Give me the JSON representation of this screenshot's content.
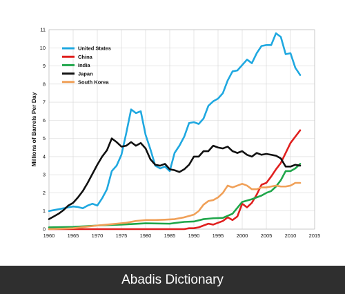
{
  "chart_data": {
    "type": "line",
    "ylabel": "Millions of Barrels Per Day",
    "xlabel": "",
    "xlim": [
      1960,
      2015
    ],
    "ylim": [
      0,
      11
    ],
    "xticks": [
      "1960",
      "1965",
      "1970",
      "1975",
      "1980",
      "1985",
      "1990",
      "1995",
      "2000",
      "2005",
      "2010",
      "2015"
    ],
    "yticks": [
      "0",
      "1",
      "2",
      "3",
      "4",
      "5",
      "6",
      "7",
      "8",
      "9",
      "10",
      "11"
    ],
    "grid": true,
    "legend_position": "top-left",
    "series": [
      {
        "name": "United States",
        "color": "#1fa8e0",
        "x": [
          1960,
          1961,
          1962,
          1963,
          1964,
          1965,
          1966,
          1967,
          1968,
          1969,
          1970,
          1971,
          1972,
          1973,
          1974,
          1975,
          1976,
          1977,
          1978,
          1979,
          1980,
          1981,
          1982,
          1983,
          1984,
          1985,
          1986,
          1987,
          1988,
          1989,
          1990,
          1991,
          1992,
          1993,
          1994,
          1995,
          1996,
          1997,
          1998,
          1999,
          2000,
          2001,
          2002,
          2003,
          2004,
          2005,
          2006,
          2007,
          2008,
          2009,
          2010,
          2011,
          2012
        ],
        "values": [
          1.0,
          1.05,
          1.1,
          1.15,
          1.2,
          1.25,
          1.22,
          1.15,
          1.3,
          1.4,
          1.3,
          1.7,
          2.2,
          3.2,
          3.5,
          4.1,
          5.3,
          6.6,
          6.4,
          6.5,
          5.2,
          4.4,
          3.5,
          3.35,
          3.45,
          3.2,
          4.2,
          4.6,
          5.1,
          5.85,
          5.9,
          5.8,
          6.1,
          6.8,
          7.05,
          7.2,
          7.5,
          8.2,
          8.7,
          8.75,
          9.05,
          9.35,
          9.15,
          9.7,
          10.1,
          10.15,
          10.15,
          10.8,
          10.6,
          9.65,
          9.7,
          8.9,
          8.5
        ]
      },
      {
        "name": "China",
        "color": "#e0201f",
        "x": [
          1960,
          1970,
          1980,
          1988,
          1989,
          1990,
          1991,
          1992,
          1993,
          1994,
          1995,
          1996,
          1997,
          1998,
          1999,
          2000,
          2001,
          2002,
          2003,
          2004,
          2005,
          2006,
          2007,
          2008,
          2009,
          2010,
          2011,
          2012
        ],
        "values": [
          0.0,
          0.0,
          0.0,
          0.0,
          0.05,
          0.05,
          0.1,
          0.2,
          0.3,
          0.25,
          0.35,
          0.45,
          0.65,
          0.5,
          0.7,
          1.4,
          1.2,
          1.45,
          1.9,
          2.45,
          2.55,
          2.9,
          3.3,
          3.65,
          4.2,
          4.75,
          5.1,
          5.45
        ]
      },
      {
        "name": "India",
        "color": "#1fa64a",
        "x": [
          1960,
          1965,
          1970,
          1975,
          1980,
          1985,
          1988,
          1990,
          1992,
          1994,
          1996,
          1998,
          2000,
          2002,
          2004,
          2005,
          2006,
          2007,
          2008,
          2009,
          2010,
          2011,
          2012
        ],
        "values": [
          0.1,
          0.12,
          0.2,
          0.25,
          0.32,
          0.3,
          0.4,
          0.42,
          0.55,
          0.6,
          0.62,
          0.85,
          1.5,
          1.65,
          1.85,
          2.0,
          2.1,
          2.35,
          2.7,
          3.2,
          3.2,
          3.35,
          3.6
        ]
      },
      {
        "name": "Japan",
        "color": "#111111",
        "x": [
          1960,
          1961,
          1962,
          1963,
          1964,
          1965,
          1966,
          1967,
          1968,
          1969,
          1970,
          1971,
          1972,
          1973,
          1974,
          1975,
          1976,
          1977,
          1978,
          1979,
          1980,
          1981,
          1982,
          1983,
          1984,
          1985,
          1986,
          1987,
          1988,
          1989,
          1990,
          1991,
          1992,
          1993,
          1994,
          1995,
          1996,
          1997,
          1998,
          1999,
          2000,
          2001,
          2002,
          2003,
          2004,
          2005,
          2006,
          2007,
          2008,
          2009,
          2010,
          2011,
          2012
        ],
        "values": [
          0.55,
          0.7,
          0.85,
          1.05,
          1.3,
          1.45,
          1.75,
          2.1,
          2.55,
          3.05,
          3.55,
          4.0,
          4.35,
          5.0,
          4.8,
          4.55,
          4.6,
          4.8,
          4.6,
          4.75,
          4.45,
          3.85,
          3.55,
          3.5,
          3.6,
          3.3,
          3.25,
          3.15,
          3.3,
          3.55,
          4.0,
          4.0,
          4.3,
          4.3,
          4.6,
          4.5,
          4.45,
          4.55,
          4.3,
          4.2,
          4.3,
          4.1,
          4.0,
          4.2,
          4.1,
          4.15,
          4.1,
          4.05,
          3.9,
          3.45,
          3.45,
          3.55,
          3.5
        ]
      },
      {
        "name": "South Korea",
        "color": "#f0a058",
        "x": [
          1960,
          1965,
          1970,
          1972,
          1974,
          1976,
          1978,
          1980,
          1982,
          1984,
          1986,
          1988,
          1990,
          1991,
          1992,
          1993,
          1994,
          1995,
          1996,
          1997,
          1998,
          1999,
          2000,
          2001,
          2002,
          2003,
          2004,
          2005,
          2006,
          2007,
          2008,
          2009,
          2010,
          2011,
          2012
        ],
        "values": [
          0.0,
          0.05,
          0.2,
          0.25,
          0.3,
          0.35,
          0.45,
          0.5,
          0.5,
          0.52,
          0.55,
          0.65,
          0.8,
          1.0,
          1.35,
          1.55,
          1.6,
          1.75,
          2.0,
          2.4,
          2.3,
          2.4,
          2.5,
          2.4,
          2.2,
          2.2,
          2.3,
          2.3,
          2.35,
          2.4,
          2.35,
          2.35,
          2.4,
          2.55,
          2.55
        ]
      }
    ]
  },
  "footer": {
    "text": "Abadis Dictionary"
  }
}
